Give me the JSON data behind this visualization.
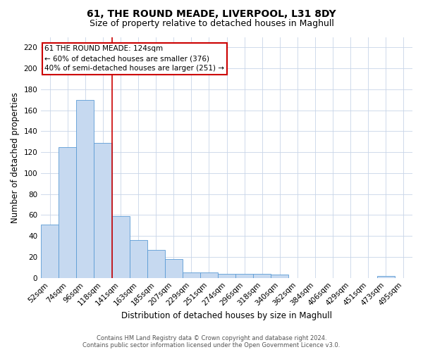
{
  "title": "61, THE ROUND MEADE, LIVERPOOL, L31 8DY",
  "subtitle": "Size of property relative to detached houses in Maghull",
  "xlabel": "Distribution of detached houses by size in Maghull",
  "ylabel": "Number of detached properties",
  "categories": [
    "52sqm",
    "74sqm",
    "96sqm",
    "118sqm",
    "141sqm",
    "163sqm",
    "185sqm",
    "207sqm",
    "229sqm",
    "251sqm",
    "274sqm",
    "296sqm",
    "318sqm",
    "340sqm",
    "362sqm",
    "384sqm",
    "406sqm",
    "429sqm",
    "451sqm",
    "473sqm",
    "495sqm"
  ],
  "values": [
    51,
    125,
    170,
    129,
    59,
    36,
    27,
    18,
    5,
    5,
    4,
    4,
    4,
    3,
    0,
    0,
    0,
    0,
    0,
    2,
    0
  ],
  "bar_color": "#c6d9f0",
  "bar_edgecolor": "#5b9bd5",
  "annotation_text": "61 THE ROUND MEADE: 124sqm\n← 60% of detached houses are smaller (376)\n40% of semi-detached houses are larger (251) →",
  "annotation_box_color": "#ffffff",
  "annotation_box_edgecolor": "#cc0000",
  "ylim": [
    0,
    230
  ],
  "yticks": [
    0,
    20,
    40,
    60,
    80,
    100,
    120,
    140,
    160,
    180,
    200,
    220
  ],
  "footer_line1": "Contains HM Land Registry data © Crown copyright and database right 2024.",
  "footer_line2": "Contains public sector information licensed under the Open Government Licence v3.0.",
  "background_color": "#ffffff",
  "grid_color": "#c8d4e8",
  "title_fontsize": 10,
  "subtitle_fontsize": 9,
  "axis_label_fontsize": 8.5,
  "tick_fontsize": 7.5,
  "annotation_fontsize": 7.5,
  "footer_fontsize": 6,
  "property_line_color": "#cc0000",
  "property_line_x": 3.5
}
